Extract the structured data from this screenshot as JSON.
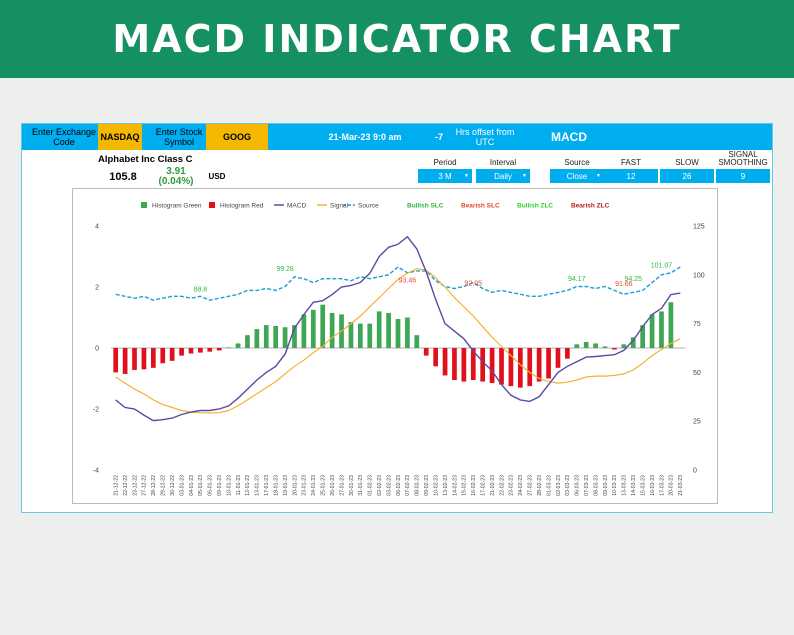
{
  "banner": {
    "title": "MACD INDICATOR CHART"
  },
  "topbar": {
    "exchange_label": "Enter Exchange Code",
    "exchange_value": "NASDAQ",
    "symbol_label": "Enter Stock Symbol",
    "symbol_value": "GOOG",
    "datetime": "21-Mar-23 9:0 am",
    "utc_offset": "-7",
    "utc_label": "Hrs offset from UTC",
    "indicator": "MACD"
  },
  "quote": {
    "name": "Alphabet Inc Class C",
    "price": "105.8",
    "change": "3.91 (0.04%)",
    "currency": "USD"
  },
  "params": [
    {
      "label": "Period",
      "value": "3 M",
      "dropdown": true
    },
    {
      "label": "Interval",
      "value": "Daily",
      "dropdown": true
    },
    {
      "label": "Source",
      "value": "Close",
      "dropdown": true
    },
    {
      "label": "FAST",
      "value": "12",
      "dropdown": false
    },
    {
      "label": "SLOW",
      "value": "26",
      "dropdown": false
    },
    {
      "label": "SIGNAL SMOOTHING",
      "value": "9",
      "dropdown": false
    }
  ],
  "colors": {
    "hist_green": "#3ea654",
    "hist_red": "#e0101c",
    "macd": "#5b4aa0",
    "signal": "#f5b230",
    "source": "#1a9fd8",
    "bullish": "#2db83d",
    "bearish": "#e8452e"
  },
  "chart_data": {
    "type": "bar",
    "legend": [
      "Histogram Green",
      "Histogram Red",
      "MACD",
      "Signal",
      "Source",
      "Bullish SLC",
      "Bearish SLC",
      "Bullish ZLC",
      "Bearish ZLC"
    ],
    "legend_placement": "top",
    "grid": false,
    "y_left_range": [
      -4,
      4
    ],
    "y_left_ticks": [
      "4",
      "2",
      "0",
      "-2",
      "-4"
    ],
    "y_right_range": [
      0,
      125
    ],
    "y_right_ticks": [
      "125",
      "100",
      "75",
      "50",
      "25",
      "0"
    ],
    "dates": [
      "21-12-22",
      "22-12-22",
      "23-12-22",
      "27-12-22",
      "28-12-22",
      "29-12-22",
      "30-12-22",
      "03-01-23",
      "04-01-23",
      "05-01-23",
      "06-01-23",
      "09-01-23",
      "10-01-23",
      "11-01-23",
      "12-01-23",
      "13-01-23",
      "17-01-23",
      "18-01-23",
      "19-01-23",
      "20-01-23",
      "23-01-23",
      "24-01-23",
      "25-01-23",
      "26-01-23",
      "27-01-23",
      "30-01-23",
      "31-01-23",
      "01-02-23",
      "02-02-23",
      "03-02-23",
      "06-02-23",
      "07-02-23",
      "08-02-23",
      "09-02-23",
      "10-02-23",
      "13-02-23",
      "14-02-23",
      "15-02-23",
      "16-02-23",
      "17-02-23",
      "21-02-23",
      "22-02-23",
      "23-02-23",
      "24-02-23",
      "27-02-23",
      "28-02-23",
      "01-03-23",
      "02-03-23",
      "03-03-23",
      "06-03-23",
      "07-03-23",
      "08-03-23",
      "09-03-23",
      "10-03-23",
      "13-03-23",
      "14-03-23",
      "15-03-23",
      "16-03-23",
      "17-03-23",
      "20-03-23",
      "21-03-23"
    ],
    "series": [
      {
        "name": "Histogram Green",
        "axis": "left",
        "values": [
          0,
          0,
          0,
          0,
          0,
          0,
          0,
          0,
          0,
          0,
          0,
          0,
          0.02,
          0.15,
          0.42,
          0.62,
          0.75,
          0.72,
          0.68,
          0.75,
          1.1,
          1.25,
          1.42,
          1.15,
          1.1,
          0.85,
          0.8,
          0.8,
          1.2,
          1.15,
          0.95,
          1.0,
          0.42,
          0,
          0,
          0,
          0,
          0,
          0,
          0,
          0,
          0,
          0,
          0,
          0,
          0,
          0,
          0,
          0,
          0.12,
          0.2,
          0.15,
          0.05,
          0,
          0.12,
          0.35,
          0.75,
          1.1,
          1.2,
          1.5,
          0
        ]
      },
      {
        "name": "Histogram Red",
        "axis": "left",
        "values": [
          -0.8,
          -0.85,
          -0.72,
          -0.7,
          -0.65,
          -0.5,
          -0.42,
          -0.25,
          -0.18,
          -0.15,
          -0.12,
          -0.08,
          0,
          0,
          0,
          0,
          0,
          0,
          0,
          0,
          0,
          0,
          0,
          0,
          0,
          0,
          0,
          0,
          0,
          0,
          0,
          0,
          0,
          -0.25,
          -0.6,
          -0.9,
          -1.05,
          -1.1,
          -1.05,
          -1.1,
          -1.15,
          -1.2,
          -1.25,
          -1.3,
          -1.25,
          -1.1,
          -1.0,
          -0.65,
          -0.35,
          0,
          0,
          0,
          0,
          -0.05,
          0,
          0,
          0,
          0,
          0,
          0,
          0
        ]
      },
      {
        "name": "MACD",
        "axis": "left",
        "values": [
          -1.7,
          -1.95,
          -2.0,
          -2.2,
          -2.38,
          -2.35,
          -2.3,
          -2.18,
          -2.1,
          -2.05,
          -2.05,
          -2.0,
          -1.9,
          -1.65,
          -1.35,
          -1.05,
          -0.8,
          -0.6,
          -0.2,
          0.65,
          1.1,
          1.5,
          1.55,
          1.75,
          2.0,
          2.05,
          2.15,
          2.45,
          3.0,
          3.3,
          3.4,
          3.65,
          3.25,
          2.5,
          1.6,
          0.8,
          0.55,
          0.3,
          -0.1,
          -0.45,
          -0.75,
          -1.2,
          -1.55,
          -1.7,
          -1.75,
          -1.6,
          -1.2,
          -0.8,
          -0.6,
          -0.45,
          -0.3,
          -0.28,
          -0.25,
          -0.22,
          -0.08,
          0.25,
          0.7,
          1.1,
          1.3,
          1.75,
          1.8
        ]
      },
      {
        "name": "Signal",
        "axis": "left",
        "values": [
          -0.95,
          -1.15,
          -1.35,
          -1.5,
          -1.7,
          -1.85,
          -1.95,
          -2.05,
          -2.1,
          -2.12,
          -2.13,
          -2.12,
          -2.05,
          -1.9,
          -1.7,
          -1.5,
          -1.3,
          -1.1,
          -0.85,
          -0.6,
          -0.4,
          -0.15,
          0.05,
          0.35,
          0.55,
          0.8,
          1.05,
          1.35,
          1.65,
          1.95,
          2.25,
          2.45,
          2.6,
          2.55,
          2.3,
          2.0,
          1.65,
          1.35,
          1.05,
          0.7,
          0.35,
          0.05,
          -0.25,
          -0.55,
          -0.8,
          -1.0,
          -1.1,
          -1.15,
          -1.12,
          -1.05,
          -0.95,
          -0.92,
          -0.92,
          -0.9,
          -0.85,
          -0.72,
          -0.5,
          -0.25,
          -0.05,
          0.15,
          0.3
        ]
      },
      {
        "name": "Source",
        "axis": "right",
        "values": [
          90,
          89,
          88,
          89,
          87,
          88,
          89,
          89,
          88,
          89,
          87,
          88,
          89,
          90,
          92,
          92,
          93,
          92,
          94,
          99,
          98,
          96,
          98,
          98,
          98,
          97,
          99,
          98,
          99,
          100,
          104,
          101,
          102,
          102,
          97,
          94,
          93,
          94,
          96,
          93,
          91,
          92,
          91,
          90,
          89,
          89,
          90,
          91,
          92,
          94,
          94,
          93,
          94,
          92,
          90,
          91,
          92,
          96,
          100,
          101,
          104
        ]
      }
    ],
    "annotations": [
      {
        "text": "88.8",
        "type": "bullish",
        "x": "05-01-23",
        "y": 88.8
      },
      {
        "text": "99.28",
        "type": "bullish",
        "x": "19-01-23",
        "y": 99.28
      },
      {
        "text": "93.46",
        "type": "bearish",
        "x": "07-02-23",
        "y": 93.46
      },
      {
        "text": "92.05",
        "type": "bearish",
        "x": "16-02-23",
        "y": 92.05
      },
      {
        "text": "94.17",
        "type": "bullish",
        "x": "06-03-23",
        "y": 94.17
      },
      {
        "text": "91.66",
        "type": "bearish",
        "x": "13-03-23",
        "y": 91.66
      },
      {
        "text": "94.25",
        "type": "bullish",
        "x": "14-03-23",
        "y": 94.25
      },
      {
        "text": "101.07",
        "type": "bullish",
        "x": "17-03-23",
        "y": 101.07
      }
    ]
  }
}
